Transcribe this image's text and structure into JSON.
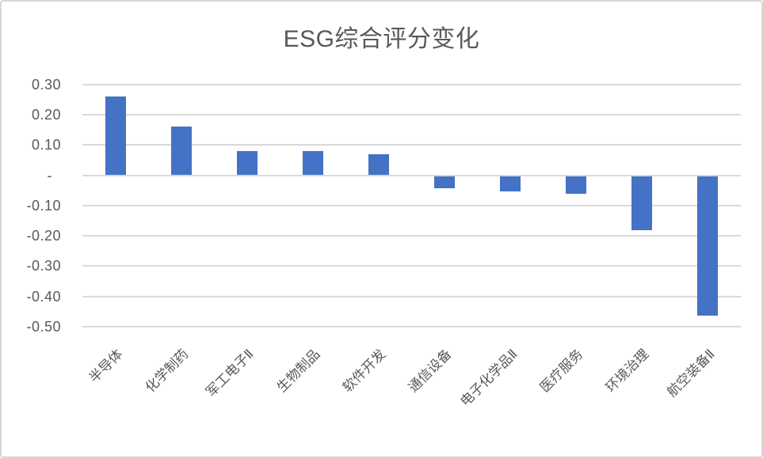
{
  "chart_title": "ESG综合评分变化",
  "chart_data": {
    "type": "bar",
    "title": "ESG综合评分变化",
    "xlabel": "",
    "ylabel": "",
    "categories": [
      "半导体",
      "化学制药",
      "军工电子Ⅱ",
      "生物制品",
      "软件开发",
      "通信设备",
      "电子化学品Ⅱ",
      "医疗服务",
      "环境治理",
      "航空装备Ⅱ"
    ],
    "values": [
      0.26,
      0.16,
      0.08,
      0.08,
      0.07,
      -0.04,
      -0.05,
      -0.06,
      -0.18,
      -0.46
    ],
    "ylim": [
      -0.5,
      0.3
    ],
    "ytick_interval": 0.1,
    "ytick_labels": [
      "0.30",
      "0.20",
      "0.10",
      "-",
      "-0.10",
      "-0.20",
      "-0.30",
      "-0.40",
      "-0.50"
    ],
    "grid": true,
    "legend": false,
    "x_label_rotation_deg": 45,
    "colors": {
      "bar": "#4472C4",
      "gridline": "#D9D9D9",
      "text": "#595959",
      "frame_border": "#D6D6D6",
      "background": "#FFFFFF"
    }
  }
}
